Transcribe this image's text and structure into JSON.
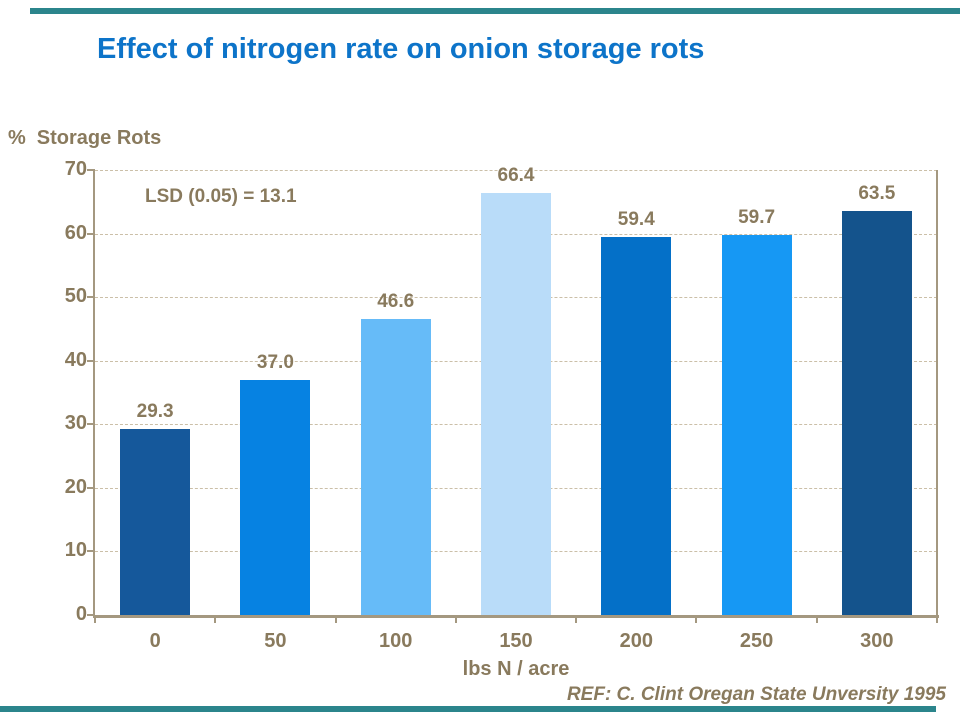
{
  "slide": {
    "title": "Effect of nitrogen rate on onion storage rots",
    "footer_ref": "REF: C. Clint Oregan State Unversity  1995",
    "accent_color": "#2B858C",
    "title_color": "#0D74C9",
    "text_color": "#897A5D",
    "axis_color": "#A49880",
    "gridline_color": "#CBBFA8"
  },
  "chart_data": {
    "type": "bar",
    "title": "Effect of nitrogen rate on onion storage rots",
    "ylabel_prefix": "%",
    "ylabel": "Storage Rots",
    "xlabel": "lbs N / acre",
    "annotation": "LSD (0.05) = 13.1",
    "categories": [
      "0",
      "50",
      "100",
      "150",
      "200",
      "250",
      "300"
    ],
    "values": [
      29.3,
      37.0,
      46.6,
      66.4,
      59.4,
      59.7,
      63.5
    ],
    "value_labels": [
      "29.3",
      "37.0",
      "46.6",
      "66.4",
      "59.4",
      "59.7",
      "63.5"
    ],
    "bar_colors": [
      "#15589B",
      "#0682E2",
      "#66BBF8",
      "#B9DCF9",
      "#0470C8",
      "#1698F4",
      "#14538C"
    ],
    "ylim": [
      0,
      70
    ],
    "ytick_step": 10,
    "grid": "horizontal-dashed",
    "legend": "none"
  }
}
